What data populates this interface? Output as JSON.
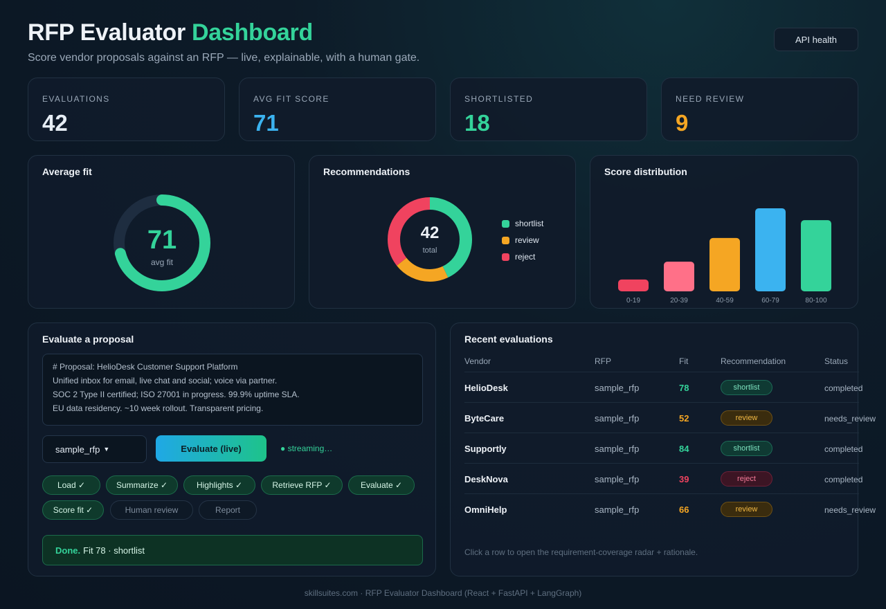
{
  "header": {
    "title_main": "RFP Evaluator",
    "title_accent": "Dashboard",
    "subtitle": "Score vendor proposals against an RFP — live, explainable, with a human gate.",
    "api_button": "API health"
  },
  "stats": [
    {
      "label": "EVALUATIONS",
      "value": "42",
      "color": "#e6edf5"
    },
    {
      "label": "AVG FIT SCORE",
      "value": "71",
      "color": "#3bb3f0"
    },
    {
      "label": "SHORTLISTED",
      "value": "18",
      "color": "#34d39a"
    },
    {
      "label": "NEED REVIEW",
      "value": "9",
      "color": "#f5a623"
    }
  ],
  "average_fit": {
    "title": "Average fit",
    "value": "71",
    "caption": "avg fit",
    "fraction": 0.71,
    "color": "#34d39a"
  },
  "recommendations": {
    "title": "Recommendations",
    "total": "42",
    "total_caption": "total",
    "slices": [
      {
        "name": "shortlist",
        "value": 18,
        "color": "#34d39a"
      },
      {
        "name": "review",
        "value": 9,
        "color": "#f5a623"
      },
      {
        "name": "reject",
        "value": 15,
        "color": "#f0435f"
      }
    ]
  },
  "chart_data": {
    "type": "bar",
    "title": "Score distribution",
    "categories": [
      "0-19",
      "20-39",
      "40-59",
      "60-79",
      "80-100"
    ],
    "values": [
      2,
      5,
      9,
      14,
      12
    ],
    "colors": [
      "#f0435f",
      "#ff7088",
      "#f5a623",
      "#3bb3f0",
      "#34d39a"
    ],
    "ylim": [
      0,
      14
    ]
  },
  "evaluate": {
    "title": "Evaluate a proposal",
    "proposal_lines": [
      "# Proposal: HelioDesk Customer Support Platform",
      "Unified inbox for email, live chat and social; voice via partner.",
      "SOC 2 Type II certified; ISO 27001 in progress. 99.9% uptime SLA.",
      "EU data residency. ~10 week rollout. Transparent pricing."
    ],
    "rfp_select": "sample_rfp",
    "evaluate_button": "Evaluate (live)",
    "streaming": "● streaming…",
    "steps": [
      {
        "label": "Load ✓",
        "done": true
      },
      {
        "label": "Summarize ✓",
        "done": true
      },
      {
        "label": "Highlights ✓",
        "done": true
      },
      {
        "label": "Retrieve RFP ✓",
        "done": true
      },
      {
        "label": "Evaluate ✓",
        "done": true
      },
      {
        "label": "Score fit ✓",
        "done": true
      },
      {
        "label": "Human review",
        "done": false
      },
      {
        "label": "Report",
        "done": false
      }
    ],
    "done_strong": "Done.",
    "done_text": "Fit 78 · shortlist"
  },
  "recent": {
    "title": "Recent evaluations",
    "columns": [
      "Vendor",
      "RFP",
      "Fit",
      "Recommendation",
      "Status"
    ],
    "rows": [
      {
        "vendor": "HelioDesk",
        "rfp": "sample_rfp",
        "fit": "78",
        "fit_color": "#34d39a",
        "rec": "shortlist",
        "status": "completed"
      },
      {
        "vendor": "ByteCare",
        "rfp": "sample_rfp",
        "fit": "52",
        "fit_color": "#f5a623",
        "rec": "review",
        "status": "needs_review"
      },
      {
        "vendor": "Supportly",
        "rfp": "sample_rfp",
        "fit": "84",
        "fit_color": "#34d39a",
        "rec": "shortlist",
        "status": "completed"
      },
      {
        "vendor": "DeskNova",
        "rfp": "sample_rfp",
        "fit": "39",
        "fit_color": "#f0435f",
        "rec": "reject",
        "status": "completed"
      },
      {
        "vendor": "OmniHelp",
        "rfp": "sample_rfp",
        "fit": "66",
        "fit_color": "#f5a623",
        "rec": "review",
        "status": "needs_review"
      }
    ],
    "hint": "Click a row to open the requirement-coverage radar + rationale."
  },
  "footer": "skillsuites.com · RFP Evaluator Dashboard (React + FastAPI + LangGraph)"
}
